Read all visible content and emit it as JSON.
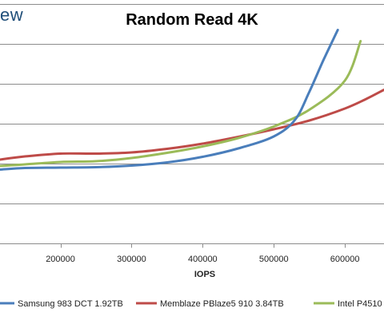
{
  "brand": {
    "logo_text": "ew"
  },
  "chart_data": {
    "type": "line",
    "title": "Random Read 4K",
    "xlabel": "IOPS",
    "ylabel": "",
    "x_ticks": [
      200000,
      300000,
      400000,
      500000,
      600000
    ],
    "x_tick_labels": [
      "200000",
      "300000",
      "400000",
      "500000",
      "600000"
    ],
    "xlim": [
      115000,
      655000
    ],
    "ylim": [
      0,
      6
    ],
    "grid": true,
    "legend_position": "bottom",
    "series": [
      {
        "name": "Samsung 983 DCT 1.92TB",
        "color": "#4a7ebb",
        "x": [
          115000,
          150000,
          200000,
          250000,
          300000,
          350000,
          400000,
          450000,
          500000,
          530000,
          550000,
          570000,
          590000
        ],
        "y": [
          1.85,
          1.89,
          1.9,
          1.91,
          1.95,
          2.03,
          2.17,
          2.38,
          2.68,
          3.1,
          3.8,
          4.6,
          5.35
        ]
      },
      {
        "name": "Memblaze PBlaze5 910 3.84TB",
        "color": "#be4b48",
        "x": [
          115000,
          150000,
          200000,
          250000,
          300000,
          350000,
          400000,
          450000,
          500000,
          550000,
          600000,
          630000,
          655000
        ],
        "y": [
          2.1,
          2.18,
          2.25,
          2.25,
          2.28,
          2.37,
          2.5,
          2.67,
          2.86,
          3.08,
          3.38,
          3.62,
          3.85
        ]
      },
      {
        "name": "Intel P4510",
        "color": "#9bbb59",
        "x": [
          115000,
          150000,
          200000,
          250000,
          300000,
          350000,
          400000,
          450000,
          500000,
          550000,
          600000,
          622000
        ],
        "y": [
          1.94,
          1.98,
          2.04,
          2.06,
          2.14,
          2.27,
          2.43,
          2.64,
          2.93,
          3.35,
          4.08,
          5.07
        ]
      }
    ]
  }
}
